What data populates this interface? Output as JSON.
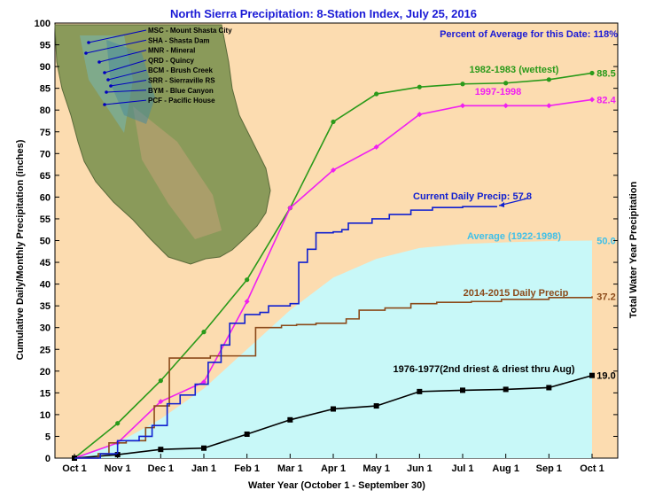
{
  "page_title": "North Sierra Precipitation: 8-Station Index, July 25, 2016",
  "percent_note": "Percent of Average for this Date: 118%",
  "stations": [
    "MSC - Mount Shasta City",
    "SHA - Shasta Dam",
    "MNR - Mineral",
    "QRD - Quincy",
    "BCM - Brush Creek",
    "SRR - Sierraville RS",
    "BYM - Blue Canyon",
    "PCF - Pacific House"
  ],
  "colors": {
    "plot_bg": "#fcdcb0",
    "average_fill": "#c8f8f8",
    "wettest": "#2a9a1a",
    "y1997": "#f020f0",
    "current": "#1020d0",
    "y2015": "#8b4a1a",
    "y1977": "#000000",
    "average_label": "#40c0e8",
    "title": "#1a1ad6"
  },
  "chart_data": {
    "type": "line",
    "title": "North Sierra Precipitation: 8-Station Index, July 25, 2016",
    "xlabel": "Water Year (October 1 - September 30)",
    "ylabel": "Cumulative Daily/Monthly Precipitation (inches)",
    "ylabel_right": "Total Water Year Precipitation",
    "ylim": [
      0,
      100
    ],
    "yticks": [
      0,
      5,
      10,
      15,
      20,
      25,
      30,
      35,
      40,
      45,
      50,
      55,
      60,
      65,
      70,
      75,
      80,
      85,
      90,
      95,
      100
    ],
    "categories": [
      "Oct 1",
      "Nov 1",
      "Dec 1",
      "Jan 1",
      "Feb 1",
      "Mar 1",
      "Apr 1",
      "May 1",
      "Jun 1",
      "Jul 1",
      "Aug 1",
      "Sep 1",
      "Oct 1"
    ],
    "grid": false,
    "series": [
      {
        "name": "1982-1983 (wettest)",
        "color_key": "wettest",
        "marker": "circle",
        "values": [
          0,
          8.0,
          17.8,
          29.0,
          41.0,
          57.5,
          77.3,
          83.7,
          85.3,
          86.0,
          86.2,
          87.0,
          88.5
        ],
        "total_label": "88.5"
      },
      {
        "name": "1997-1998",
        "color_key": "y1997",
        "marker": "diamond",
        "values": [
          0,
          3.5,
          13.0,
          17.5,
          36.0,
          57.5,
          66.2,
          71.5,
          79.0,
          81.0,
          81.0,
          81.0,
          82.4
        ],
        "total_label": "82.4"
      },
      {
        "name": "1976-1977(2nd driest & driest thru Aug)",
        "color_key": "y1977",
        "marker": "square",
        "values": [
          0,
          0.8,
          2.0,
          2.3,
          5.5,
          8.8,
          11.3,
          12.0,
          15.3,
          15.6,
          15.8,
          16.2,
          19.0
        ],
        "total_label": "19.0"
      },
      {
        "name": "2014-2015 Daily Precip",
        "color_key": "y2015",
        "marker": "none",
        "values_daily": [
          [
            0,
            0
          ],
          [
            0.55,
            1.0
          ],
          [
            0.8,
            3.5
          ],
          [
            1.2,
            4.0
          ],
          [
            1.65,
            7.0
          ],
          [
            1.85,
            12.0
          ],
          [
            2.2,
            23.0
          ],
          [
            3.0,
            23.0
          ],
          [
            3.15,
            23.5
          ],
          [
            3.95,
            23.5
          ],
          [
            4.2,
            30.0
          ],
          [
            4.8,
            30.5
          ],
          [
            5.15,
            30.7
          ],
          [
            5.6,
            31.0
          ],
          [
            6.3,
            32.0
          ],
          [
            6.6,
            34.0
          ],
          [
            7.2,
            34.5
          ],
          [
            7.8,
            35.5
          ],
          [
            8.4,
            35.8
          ],
          [
            9.2,
            36.0
          ],
          [
            9.9,
            36.5
          ],
          [
            11.0,
            36.9
          ],
          [
            12.0,
            37.2
          ]
        ],
        "total_label": "37.2"
      },
      {
        "name": "Current Daily Precip: 57.8",
        "color_key": "current",
        "marker": "none",
        "values_daily": [
          [
            0,
            0
          ],
          [
            0.6,
            1.0
          ],
          [
            1.0,
            4.0
          ],
          [
            1.5,
            5.0
          ],
          [
            1.8,
            7.5
          ],
          [
            2.15,
            12.5
          ],
          [
            2.45,
            14.5
          ],
          [
            2.8,
            17.0
          ],
          [
            3.1,
            22.0
          ],
          [
            3.4,
            26.0
          ],
          [
            3.6,
            31.0
          ],
          [
            3.95,
            33.0
          ],
          [
            4.3,
            33.5
          ],
          [
            4.5,
            35.0
          ],
          [
            5.0,
            35.5
          ],
          [
            5.2,
            45.0
          ],
          [
            5.4,
            48.0
          ],
          [
            5.6,
            51.8
          ],
          [
            6.0,
            52.0
          ],
          [
            6.2,
            52.5
          ],
          [
            6.35,
            54.0
          ],
          [
            6.9,
            55.0
          ],
          [
            7.3,
            56.0
          ],
          [
            7.8,
            57.0
          ],
          [
            8.3,
            57.6
          ],
          [
            9.0,
            57.8
          ],
          [
            9.8,
            57.8
          ]
        ]
      },
      {
        "name": "Average (1922-1998)",
        "color_key": "average_label",
        "marker": "none",
        "area": true,
        "values": [
          0,
          3.5,
          9.0,
          16.0,
          25.0,
          34.0,
          41.5,
          45.8,
          48.3,
          49.2,
          49.6,
          49.9,
          50.0
        ],
        "total_label": "50.0"
      }
    ]
  }
}
